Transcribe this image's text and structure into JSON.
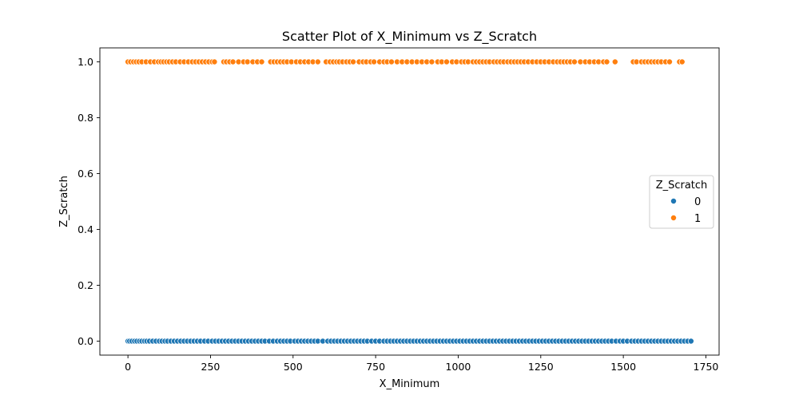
{
  "chart_data": {
    "type": "scatter",
    "title": "Scatter Plot of X_Minimum vs Z_Scratch",
    "xlabel": "X_Minimum",
    "ylabel": "Z_Scratch",
    "xlim": [
      -85,
      1790
    ],
    "ylim": [
      -0.05,
      1.05
    ],
    "xticks": [
      0,
      250,
      500,
      750,
      1000,
      1250,
      1500,
      1750
    ],
    "xtick_labels": [
      "0",
      "250",
      "500",
      "750",
      "1000",
      "1250",
      "1500",
      "1750"
    ],
    "yticks": [
      0.0,
      0.2,
      0.4,
      0.6,
      0.8,
      1.0
    ],
    "ytick_labels": [
      "0.0",
      "0.2",
      "0.4",
      "0.6",
      "0.8",
      "1.0"
    ],
    "grid": false,
    "legend": {
      "title": "Z_Scratch",
      "placement": "center-right",
      "entries": [
        "0",
        "1"
      ]
    },
    "colors": {
      "0": "#1f77b4",
      "1": "#ff7f0e"
    },
    "series": [
      {
        "name": "0",
        "y": 0,
        "x": [
          0,
          5,
          12,
          20,
          27,
          35,
          42,
          50,
          57,
          65,
          75,
          85,
          95,
          103,
          112,
          120,
          130,
          140,
          150,
          160,
          170,
          180,
          190,
          200,
          210,
          220,
          232,
          243,
          255,
          265,
          275,
          285,
          295,
          305,
          315,
          325,
          335,
          345,
          355,
          365,
          375,
          385,
          395,
          405,
          415,
          428,
          440,
          452,
          462,
          472,
          482,
          492,
          505,
          515,
          525,
          535,
          545,
          555,
          565,
          575,
          590,
          605,
          615,
          625,
          635,
          645,
          655,
          665,
          675,
          685,
          695,
          705,
          715,
          725,
          738,
          750,
          762,
          775,
          785,
          795,
          805,
          815,
          825,
          835,
          845,
          855,
          865,
          875,
          885,
          895,
          905,
          915,
          925,
          935,
          945,
          955,
          965,
          975,
          985,
          995,
          1005,
          1015,
          1025,
          1035,
          1045,
          1055,
          1065,
          1075,
          1085,
          1095,
          1105,
          1115,
          1125,
          1135,
          1145,
          1155,
          1165,
          1175,
          1185,
          1195,
          1205,
          1215,
          1225,
          1235,
          1245,
          1255,
          1265,
          1275,
          1285,
          1295,
          1305,
          1315,
          1325,
          1335,
          1345,
          1355,
          1365,
          1375,
          1385,
          1395,
          1405,
          1415,
          1425,
          1435,
          1445,
          1455,
          1465,
          1478,
          1490,
          1500,
          1512,
          1525,
          1535,
          1545,
          1555,
          1565,
          1575,
          1585,
          1595,
          1605,
          1615,
          1625,
          1635,
          1645,
          1655,
          1665,
          1675,
          1685,
          1695,
          1705
        ]
      },
      {
        "name": "1",
        "y": 1,
        "x": [
          0,
          8,
          17,
          25,
          33,
          42,
          55,
          68,
          80,
          92,
          100,
          108,
          117,
          125,
          135,
          145,
          158,
          170,
          183,
          195,
          205,
          215,
          225,
          235,
          245,
          255,
          262,
          290,
          298,
          308,
          318,
          335,
          350,
          362,
          378,
          392,
          405,
          432,
          442,
          452,
          462,
          472,
          482,
          495,
          510,
          522,
          535,
          547,
          560,
          575,
          600,
          612,
          622,
          632,
          640,
          650,
          662,
          672,
          682,
          700,
          712,
          722,
          735,
          745,
          762,
          775,
          785,
          798,
          815,
          830,
          845,
          860,
          875,
          890,
          905,
          920,
          938,
          950,
          965,
          982,
          995,
          1010,
          1020,
          1030,
          1045,
          1055,
          1065,
          1075,
          1085,
          1095,
          1108,
          1118,
          1128,
          1138,
          1150,
          1160,
          1170,
          1180,
          1190,
          1200,
          1212,
          1225,
          1238,
          1250,
          1262,
          1275,
          1288,
          1300,
          1310,
          1320,
          1330,
          1340,
          1352,
          1370,
          1385,
          1398,
          1412,
          1425,
          1440,
          1450,
          1475,
          1530,
          1540,
          1555,
          1565,
          1575,
          1585,
          1595,
          1605,
          1615,
          1628,
          1640,
          1670,
          1678
        ]
      }
    ]
  }
}
